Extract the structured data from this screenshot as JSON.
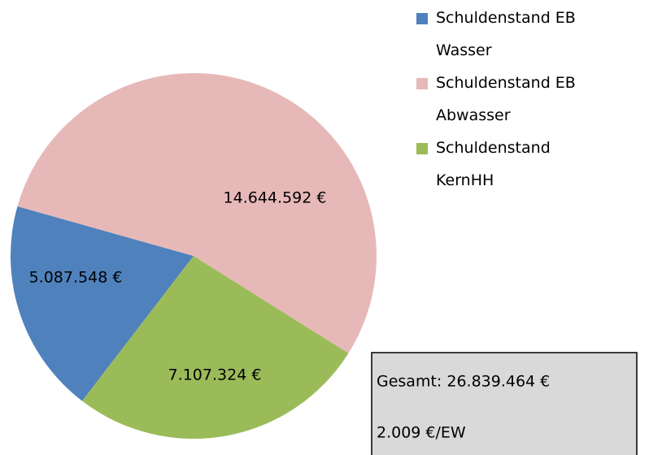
{
  "chart_data": {
    "type": "pie",
    "categories": [
      "Schuldenstand EB Wasser",
      "Schuldenstand EB Abwasser",
      "Schuldenstand KernHH"
    ],
    "values": [
      5087548,
      14644592,
      7107324
    ],
    "value_labels": [
      "5.087.548 €",
      "14.644.592 €",
      "7.107.324 €"
    ],
    "colors": [
      "#4f81bd",
      "#e6b9b8",
      "#9bbb59"
    ],
    "annotations": [
      "Gesamt: 26.839.464 €",
      "2.009 €/EW"
    ],
    "legend": "top-right"
  }
}
